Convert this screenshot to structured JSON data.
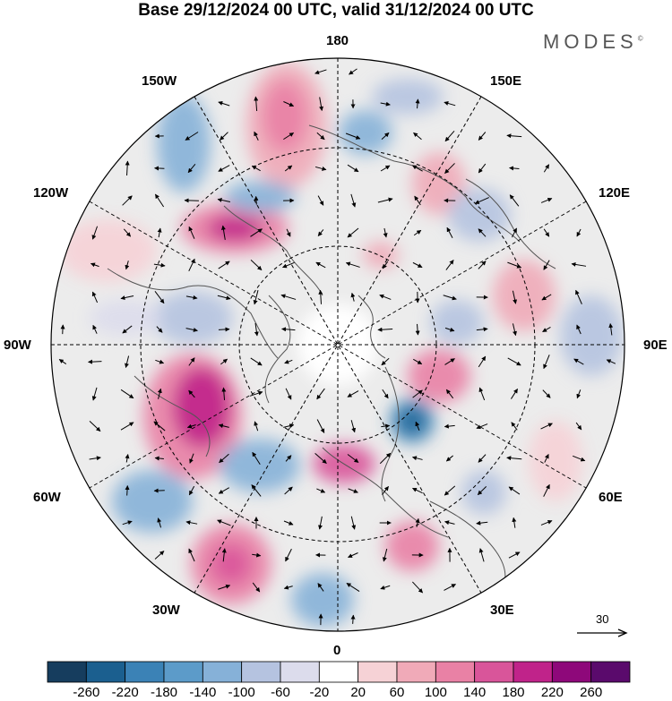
{
  "header": {
    "title": "Base 29/12/2024 00 UTC, valid 31/12/2024 00 UTC",
    "brand": "MODES",
    "brand_mark": "©"
  },
  "map": {
    "projection": "north-polar-stereographic",
    "longitude_labels": {
      "top": "180",
      "top_left": "150W",
      "top_right": "150E",
      "upper_left": "120W",
      "upper_right": "120E",
      "left": "90W",
      "right": "90E",
      "lower_left": "60W",
      "lower_right": "60E",
      "bottom_left": "30W",
      "bottom_right": "30E",
      "bottom": "0"
    },
    "graticule": "dashed lines every 30 degrees",
    "background_color": "#ececec"
  },
  "vector_reference": {
    "value": "30"
  },
  "colorbar": {
    "ticks": [
      "-260",
      "-220",
      "-180",
      "-140",
      "-100",
      "-60",
      "-20",
      "20",
      "60",
      "100",
      "140",
      "180",
      "220",
      "260"
    ],
    "colors": [
      "#163d5e",
      "#1b5f8f",
      "#3b82b6",
      "#5c9bc9",
      "#86b1d8",
      "#b5c3e0",
      "#dcdcec",
      "#ffffff",
      "#f6d2d6",
      "#f0aab8",
      "#e981a5",
      "#d9559a",
      "#c0238a",
      "#8e087a",
      "#5a0a6c"
    ]
  }
}
